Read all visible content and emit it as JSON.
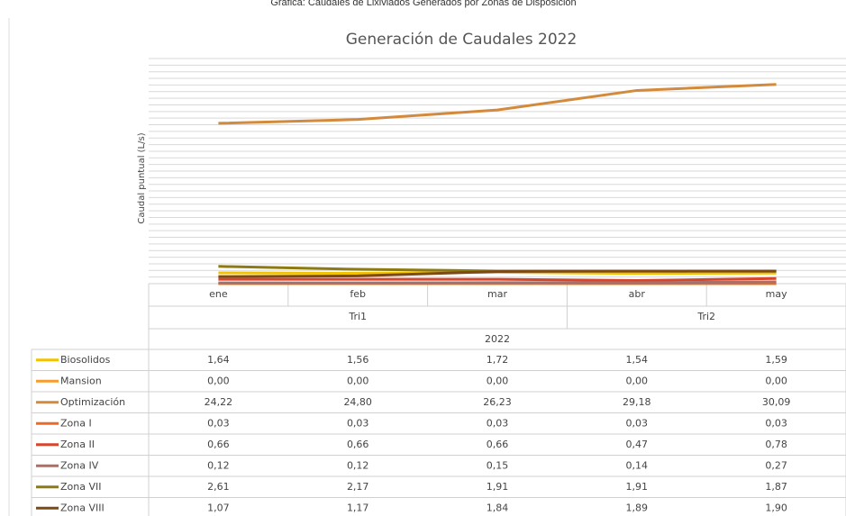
{
  "caption": "Gráfica: Caudales de Lixiviados Generados por Zonas de Disposición",
  "chart_data": {
    "type": "line",
    "title": "Generación de Caudales 2022",
    "ylabel": "Caudal puntual (L/s)",
    "categories": [
      "ene",
      "feb",
      "mar",
      "abr",
      "may"
    ],
    "groups": [
      {
        "label": "Tri1",
        "span": 3
      },
      {
        "label": "Tri2",
        "span": 2
      }
    ],
    "super_group": "2022",
    "ylim": [
      0,
      34
    ],
    "yticks": [
      0,
      1,
      2,
      3,
      4,
      5,
      6,
      7,
      8,
      9,
      10,
      11,
      12,
      13,
      14,
      15,
      16,
      17,
      18,
      19,
      20,
      21,
      22,
      23,
      24,
      25,
      26,
      27,
      28,
      29,
      30,
      31,
      32,
      33,
      34
    ],
    "grid": true,
    "series": [
      {
        "name": "Biosolidos",
        "color": "#f2c200",
        "values": [
          1.64,
          1.56,
          1.72,
          1.54,
          1.59
        ],
        "value_labels": [
          "1,64",
          "1,56",
          "1,72",
          "1,54",
          "1,59"
        ]
      },
      {
        "name": "Mansion",
        "color": "#f59d2e",
        "values": [
          0.0,
          0.0,
          0.0,
          0.0,
          0.0
        ],
        "value_labels": [
          "0,00",
          "0,00",
          "0,00",
          "0,00",
          "0,00"
        ]
      },
      {
        "name": "Optimización",
        "color": "#d38a3c",
        "values": [
          24.22,
          24.8,
          26.23,
          29.18,
          30.09
        ],
        "value_labels": [
          "24,22",
          "24,80",
          "26,23",
          "29,18",
          "30,09"
        ]
      },
      {
        "name": "Zona I",
        "color": "#ec6a26",
        "values": [
          0.03,
          0.03,
          0.03,
          0.03,
          0.03
        ],
        "value_labels": [
          "0,03",
          "0,03",
          "0,03",
          "0,03",
          "0,03"
        ]
      },
      {
        "name": "Zona II",
        "color": "#d8452b",
        "values": [
          0.66,
          0.66,
          0.66,
          0.47,
          0.78
        ],
        "value_labels": [
          "0,66",
          "0,66",
          "0,66",
          "0,47",
          "0,78"
        ]
      },
      {
        "name": "Zona IV",
        "color": "#a9706a",
        "values": [
          0.12,
          0.12,
          0.15,
          0.14,
          0.27
        ],
        "value_labels": [
          "0,12",
          "0,12",
          "0,15",
          "0,14",
          "0,27"
        ]
      },
      {
        "name": "Zona VII",
        "color": "#8d7b12",
        "values": [
          2.61,
          2.17,
          1.91,
          1.91,
          1.87
        ],
        "value_labels": [
          "2,61",
          "2,17",
          "1,91",
          "1,91",
          "1,87"
        ]
      },
      {
        "name": "Zona VIII",
        "color": "#7b4a17",
        "values": [
          1.07,
          1.17,
          1.84,
          1.89,
          1.9
        ],
        "value_labels": [
          "1,07",
          "1,17",
          "1,84",
          "1,89",
          "1,90"
        ]
      }
    ]
  }
}
